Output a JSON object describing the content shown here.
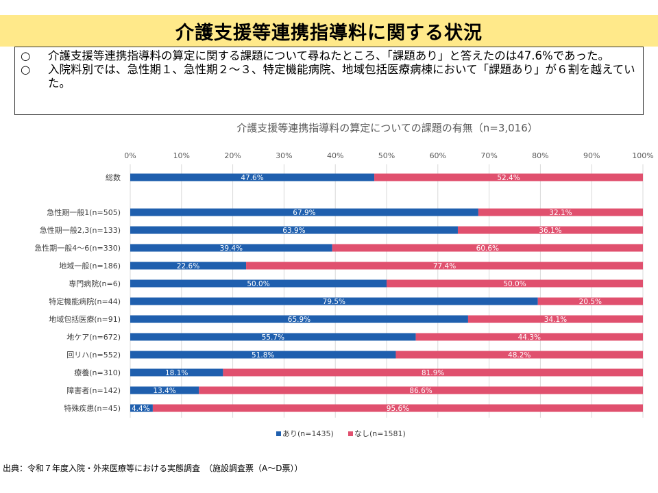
{
  "header": {
    "title": "介護支援等連携指導料に関する状況"
  },
  "summary": {
    "items": [
      {
        "mark": "○",
        "text": "介護支援等連携指導料の算定に関する課題について尋ねたところ、「課題あり」と答えたのは47.6%であった。"
      },
      {
        "mark": "○",
        "text": "入院料別では、急性期１、急性期２～３、特定機能病院、地域包括医療病棟において「課題あり」が６割を越えていた。"
      }
    ]
  },
  "chart_data": {
    "type": "bar",
    "orientation": "horizontal",
    "stacked": true,
    "title": "介護支援等連携指導料の算定についての課題の有無（n=3,016）",
    "xlim": [
      0,
      100
    ],
    "x_ticks": [
      "0%",
      "10%",
      "20%",
      "30%",
      "40%",
      "50%",
      "60%",
      "70%",
      "80%",
      "90%",
      "100%"
    ],
    "categories": [
      "総数",
      "急性期一般1(n=505)",
      "急性期一般2,3(n=133)",
      "急性期一般4～6(n=330)",
      "地域一般(n=186)",
      "専門病院(n=6)",
      "特定機能病院(n=44)",
      "地域包括医療(n=91)",
      "地ケア(n=672)",
      "回リハ(n=552)",
      "療養(n=310)",
      "障害者(n=142)",
      "特殊疾患(n=45)"
    ],
    "series": [
      {
        "name": "あり(n=1435)",
        "color": "#1f5fae",
        "values": [
          47.6,
          67.9,
          63.9,
          39.4,
          22.6,
          50.0,
          79.5,
          65.9,
          55.7,
          51.8,
          18.1,
          13.4,
          4.4
        ]
      },
      {
        "name": "なし(n=1581)",
        "color": "#e0506e",
        "values": [
          52.4,
          32.1,
          36.1,
          60.6,
          77.4,
          50.0,
          20.5,
          34.1,
          44.3,
          48.2,
          81.9,
          86.6,
          95.6
        ]
      }
    ],
    "data_labels": [
      [
        "47.6%",
        "67.9%",
        "63.9%",
        "39.4%",
        "22.6%",
        "50.0%",
        "79.5%",
        "65.9%",
        "55.7%",
        "51.8%",
        "18.1%",
        "13.4%",
        "4.4%"
      ],
      [
        "52.4%",
        "32.1%",
        "36.1%",
        "60.6%",
        "77.4%",
        "50.0%",
        "20.5%",
        "34.1%",
        "44.3%",
        "48.2%",
        "81.9%",
        "86.6%",
        "95.6%"
      ]
    ],
    "grid": true,
    "legend_position": "bottom"
  },
  "source": "出典：令和７年度入院・外来医療等における実態調査　（施設調査票（A～D票））"
}
